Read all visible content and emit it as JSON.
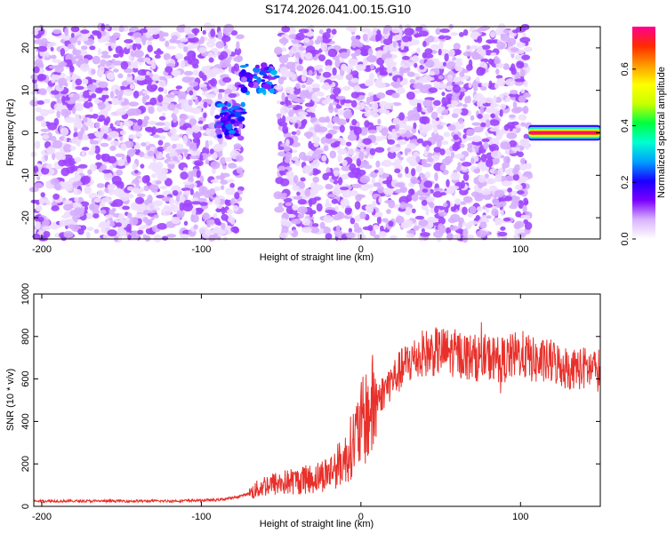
{
  "title": "S174.2026.041.00.15.G10",
  "chart_data": [
    {
      "type": "heatmap",
      "xlabel": "Height of straight line (km)",
      "ylabel": "Frequency (Hz)",
      "xlim": [
        -205,
        150
      ],
      "ylim": [
        -25,
        25
      ],
      "xticks": [
        -200,
        -100,
        0,
        100
      ],
      "yticks": [
        -20,
        -10,
        0,
        10,
        20
      ],
      "colorbar": {
        "label": "Normalized spectral amplitude",
        "range": [
          0.0,
          0.75
        ],
        "ticks": [
          0.0,
          0.2,
          0.4,
          0.6
        ],
        "colors": [
          "#ffffff",
          "#d9b3ff",
          "#7b00ff",
          "#1a00ff",
          "#00a0ff",
          "#00ffd0",
          "#00ff40",
          "#c8ff00",
          "#ffff00",
          "#ff9a00",
          "#ff2a00",
          "#ff0090"
        ]
      },
      "features": [
        {
          "name": "noise band",
          "x_range": [
            -205,
            -75
          ],
          "freq_range": [
            -25,
            25
          ]
        },
        {
          "name": "blob A",
          "x_range": [
            -90,
            -73
          ],
          "freq_range": [
            -1,
            7
          ],
          "peak_amplitude": 0.28
        },
        {
          "name": "blob B",
          "x_range": [
            -75,
            -52
          ],
          "freq_range": [
            9,
            16
          ],
          "peak_amplitude": 0.3
        },
        {
          "name": "noise band",
          "x_range": [
            -52,
            105
          ],
          "freq_range": [
            -25,
            25
          ]
        },
        {
          "name": "tone",
          "x_range": [
            105,
            150
          ],
          "freq_range": [
            -1,
            1
          ],
          "peak_amplitude": 0.75
        }
      ],
      "grid": false
    },
    {
      "type": "line",
      "xlabel": "Height of straight line (km)",
      "ylabel": "SNR (10 * v/v)",
      "xlim": [
        -205,
        150
      ],
      "ylim": [
        0,
        1000
      ],
      "xticks": [
        -200,
        -100,
        0,
        100
      ],
      "yticks": [
        0,
        200,
        400,
        600,
        800,
        1000
      ],
      "color": "#e8302a",
      "x": [
        -205,
        -180,
        -150,
        -120,
        -90,
        -80,
        -70,
        -60,
        -50,
        -40,
        -30,
        -20,
        -10,
        0,
        10,
        20,
        30,
        40,
        50,
        60,
        70,
        80,
        90,
        100,
        110,
        120,
        130,
        140,
        150
      ],
      "y": [
        25,
        25,
        25,
        25,
        30,
        40,
        60,
        100,
        110,
        120,
        130,
        160,
        220,
        380,
        500,
        600,
        680,
        720,
        730,
        720,
        700,
        700,
        690,
        720,
        680,
        680,
        650,
        650,
        640
      ],
      "grid": false
    }
  ]
}
